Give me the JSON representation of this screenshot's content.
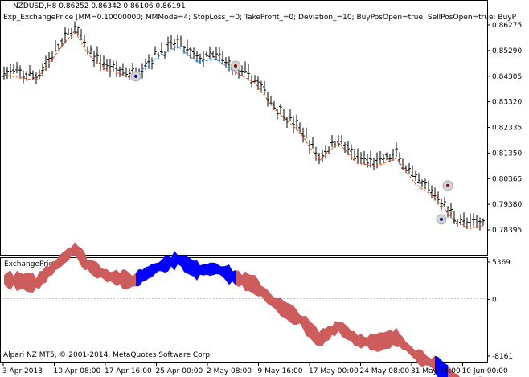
{
  "main_panel": {
    "symbol_label": "NZDUSD,H8  0.86252 0.86342 0.86106 0.86191",
    "indicator_label": "Exp_ExchangePrice [MM=0.10000000; MMMode=4; StopLoss_=0; TakeProfit_=0; Deviation_=10; BuyPosOpen=true; SellPosOpen=true; BuyP"
  },
  "sub_panel": {
    "title": "ExchangePrice",
    "copyright": "Alpari NZ MT5, © 2001-2014, MetaQuotes Software Corp."
  },
  "colors": {
    "bars": "#000000",
    "bull_fill": "#cd5c5c",
    "bear_fill": "#0000ff",
    "trend_line_up": "#ff4500",
    "trend_line_down": "#1e90ff",
    "zero_line": "#c0c0c0"
  },
  "chart_data": {
    "type": "ohlc",
    "symbol": "NZDUSD",
    "timeframe": "H8",
    "price_axis": {
      "ticks": [
        "0.86275",
        "0.85290",
        "0.84305",
        "0.83320",
        "0.82335",
        "0.81350",
        "0.80365",
        "0.79380",
        "0.78395"
      ]
    },
    "indicator_axis": {
      "ticks": [
        "5369",
        "0",
        "-8161"
      ]
    },
    "time_axis": {
      "ticks": [
        "3 Apr 2013",
        "10 Apr 08:00",
        "17 Apr 16:00",
        "25 Apr 00:00",
        "2 May 08:00",
        "9 May 16:00",
        "17 May 00:00",
        "24 May 08:00",
        "31 May 16:00",
        "10 Jun 00:00"
      ]
    },
    "trade_markers": [
      {
        "type": "buy",
        "time_index": 41,
        "price": 0.843
      },
      {
        "type": "sell",
        "time_index": 72,
        "price": 0.847
      },
      {
        "type": "buy",
        "time_index": 136,
        "price": 0.788
      },
      {
        "type": "sell",
        "time_index": 138,
        "price": 0.801
      }
    ]
  }
}
